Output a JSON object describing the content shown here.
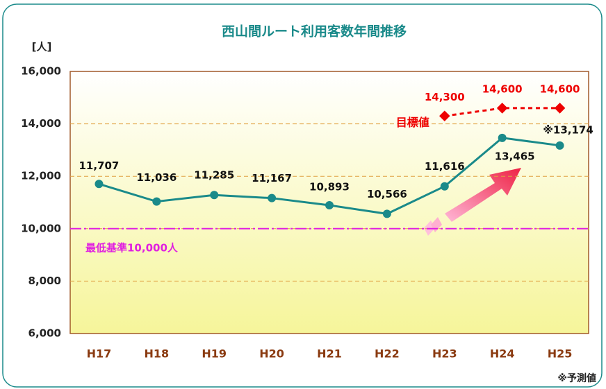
{
  "chart_data": {
    "type": "line",
    "title": "西山間ルート利用客数年間推移",
    "y_unit": "[人]",
    "note": "※予測値",
    "categories": [
      "H17",
      "H18",
      "H19",
      "H20",
      "H21",
      "H22",
      "H23",
      "H24",
      "H25"
    ],
    "series": [
      {
        "color": "#1a8a8a",
        "values": [
          11707,
          11036,
          11285,
          11167,
          10893,
          10566,
          11616,
          13465,
          13174
        ],
        "value_labels": [
          "11,707",
          "11,036",
          "11,285",
          "11,167",
          "10,893",
          "10,566",
          "11,616",
          "13,465",
          "※13,174"
        ]
      },
      {
        "name": "目標値",
        "color": "#ee0000",
        "dashed": true,
        "values": [
          null,
          null,
          null,
          null,
          null,
          null,
          14300,
          14600,
          14600
        ],
        "value_labels": [
          null,
          null,
          null,
          null,
          null,
          null,
          "14,300",
          "14,600",
          "14,600"
        ]
      }
    ],
    "reference": {
      "value": 10000,
      "label": "最低基準10,000人",
      "color": "#e020e0"
    },
    "ylim": [
      6000,
      16000
    ],
    "yticks": [
      {
        "value": 6000,
        "label": "6,000"
      },
      {
        "value": 8000,
        "label": "8,000"
      },
      {
        "value": 10000,
        "label": "10,000"
      },
      {
        "value": 12000,
        "label": "12,000"
      },
      {
        "value": 14000,
        "label": "14,000"
      },
      {
        "value": 16000,
        "label": "16,000"
      }
    ],
    "grid": true
  }
}
